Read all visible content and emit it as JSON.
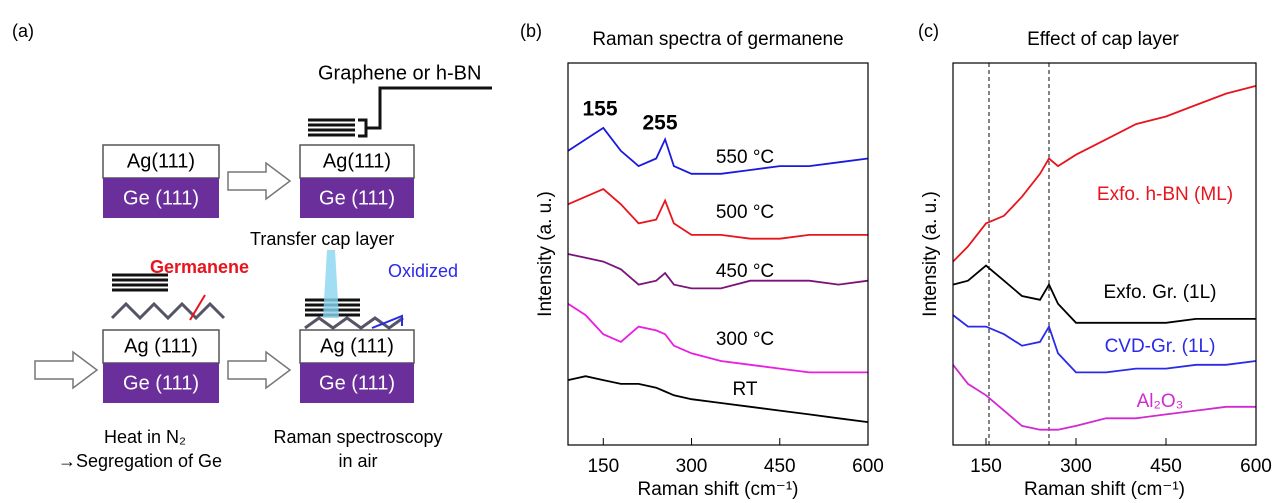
{
  "diagram": {
    "label": "(a)",
    "graphene_label": "Graphene or h-BN",
    "transfer_label": "Transfer cap layer",
    "germanene_label": "Germanene",
    "oxidized_label": "Oxidized",
    "top_layer": "Ag(111)",
    "bottom_layer": "Ge (111)",
    "top_layer_b": "Ag (111)",
    "caption_left": [
      "Heat in N₂",
      "→Segregation of Ge"
    ],
    "caption_right": [
      "Raman spectroscopy",
      "in air"
    ]
  },
  "chart_data": [
    {
      "type": "line",
      "panel": "(b)",
      "title": "Raman spectra of germanene",
      "x_label": "Raman shift (cm⁻¹)",
      "y_label": "Intensity (a. u.)",
      "xlim": [
        90,
        600
      ],
      "ylim": [
        0,
        10
      ],
      "xticks": [
        150,
        300,
        450,
        600
      ],
      "label_color": false,
      "annotations": [
        "155",
        "255"
      ],
      "x": [
        90,
        120,
        150,
        180,
        210,
        240,
        255,
        270,
        300,
        350,
        400,
        450,
        500,
        550,
        600
      ],
      "series": [
        {
          "name": "550 °C",
          "color": "#1a1adf",
          "values": [
            7.7,
            8.0,
            8.3,
            7.7,
            7.3,
            7.5,
            8.0,
            7.3,
            7.1,
            7.1,
            7.2,
            7.3,
            7.3,
            7.4,
            7.5
          ]
        },
        {
          "name": "500 °C",
          "color": "#e8141e",
          "values": [
            6.3,
            6.5,
            6.7,
            6.3,
            5.8,
            5.9,
            6.4,
            5.8,
            5.5,
            5.5,
            5.4,
            5.4,
            5.5,
            5.5,
            5.5
          ]
        },
        {
          "name": "450 °C",
          "color": "#7a147a",
          "values": [
            5.0,
            4.9,
            4.8,
            4.6,
            4.2,
            4.3,
            4.5,
            4.2,
            4.1,
            4.1,
            4.3,
            4.3,
            4.3,
            4.2,
            4.3
          ]
        },
        {
          "name": "300 °C",
          "color": "#e81ee0",
          "values": [
            3.7,
            3.4,
            2.9,
            2.7,
            3.1,
            3.0,
            2.9,
            2.6,
            2.4,
            2.2,
            2.1,
            2.0,
            1.9,
            1.9,
            1.9
          ]
        },
        {
          "name": "RT",
          "color": "#000000",
          "values": [
            1.7,
            1.8,
            1.7,
            1.6,
            1.6,
            1.5,
            1.4,
            1.3,
            1.2,
            1.1,
            1.0,
            0.9,
            0.8,
            0.7,
            0.6
          ]
        }
      ]
    },
    {
      "type": "line",
      "panel": "(c)",
      "title": "Effect of cap layer",
      "x_label": "Raman shift (cm⁻¹)",
      "y_label": "Intensity (a. u.)",
      "xlim": [
        95,
        600
      ],
      "ylim": [
        0,
        10
      ],
      "xticks": [
        150,
        300,
        450,
        600
      ],
      "label_color": true,
      "vlines": [
        155,
        255
      ],
      "x": [
        95,
        120,
        150,
        180,
        210,
        240,
        255,
        270,
        300,
        350,
        400,
        450,
        500,
        550,
        600
      ],
      "series": [
        {
          "name": "Exfo. h-BN (ML)",
          "color": "#e8141e",
          "values": [
            4.8,
            5.2,
            5.8,
            6.0,
            6.5,
            7.1,
            7.5,
            7.3,
            7.6,
            8.0,
            8.4,
            8.6,
            8.9,
            9.2,
            9.4
          ]
        },
        {
          "name": "Exfo. Gr. (1L)",
          "color": "#000000",
          "values": [
            4.2,
            4.3,
            4.7,
            4.3,
            3.9,
            3.8,
            4.2,
            3.7,
            3.2,
            3.2,
            3.2,
            3.2,
            3.3,
            3.3,
            3.3
          ]
        },
        {
          "name": "CVD-Gr. (1L)",
          "color": "#2a2ae8",
          "values": [
            3.4,
            3.1,
            3.1,
            2.9,
            2.6,
            2.7,
            3.1,
            2.4,
            1.9,
            1.9,
            2.0,
            2.0,
            2.1,
            2.1,
            2.2
          ]
        },
        {
          "name": "Al₂O₃",
          "color": "#d02ad0",
          "values": [
            2.1,
            1.6,
            1.3,
            0.9,
            0.5,
            0.4,
            0.4,
            0.4,
            0.5,
            0.7,
            0.7,
            0.8,
            0.9,
            1.0,
            1.0
          ]
        }
      ]
    }
  ]
}
